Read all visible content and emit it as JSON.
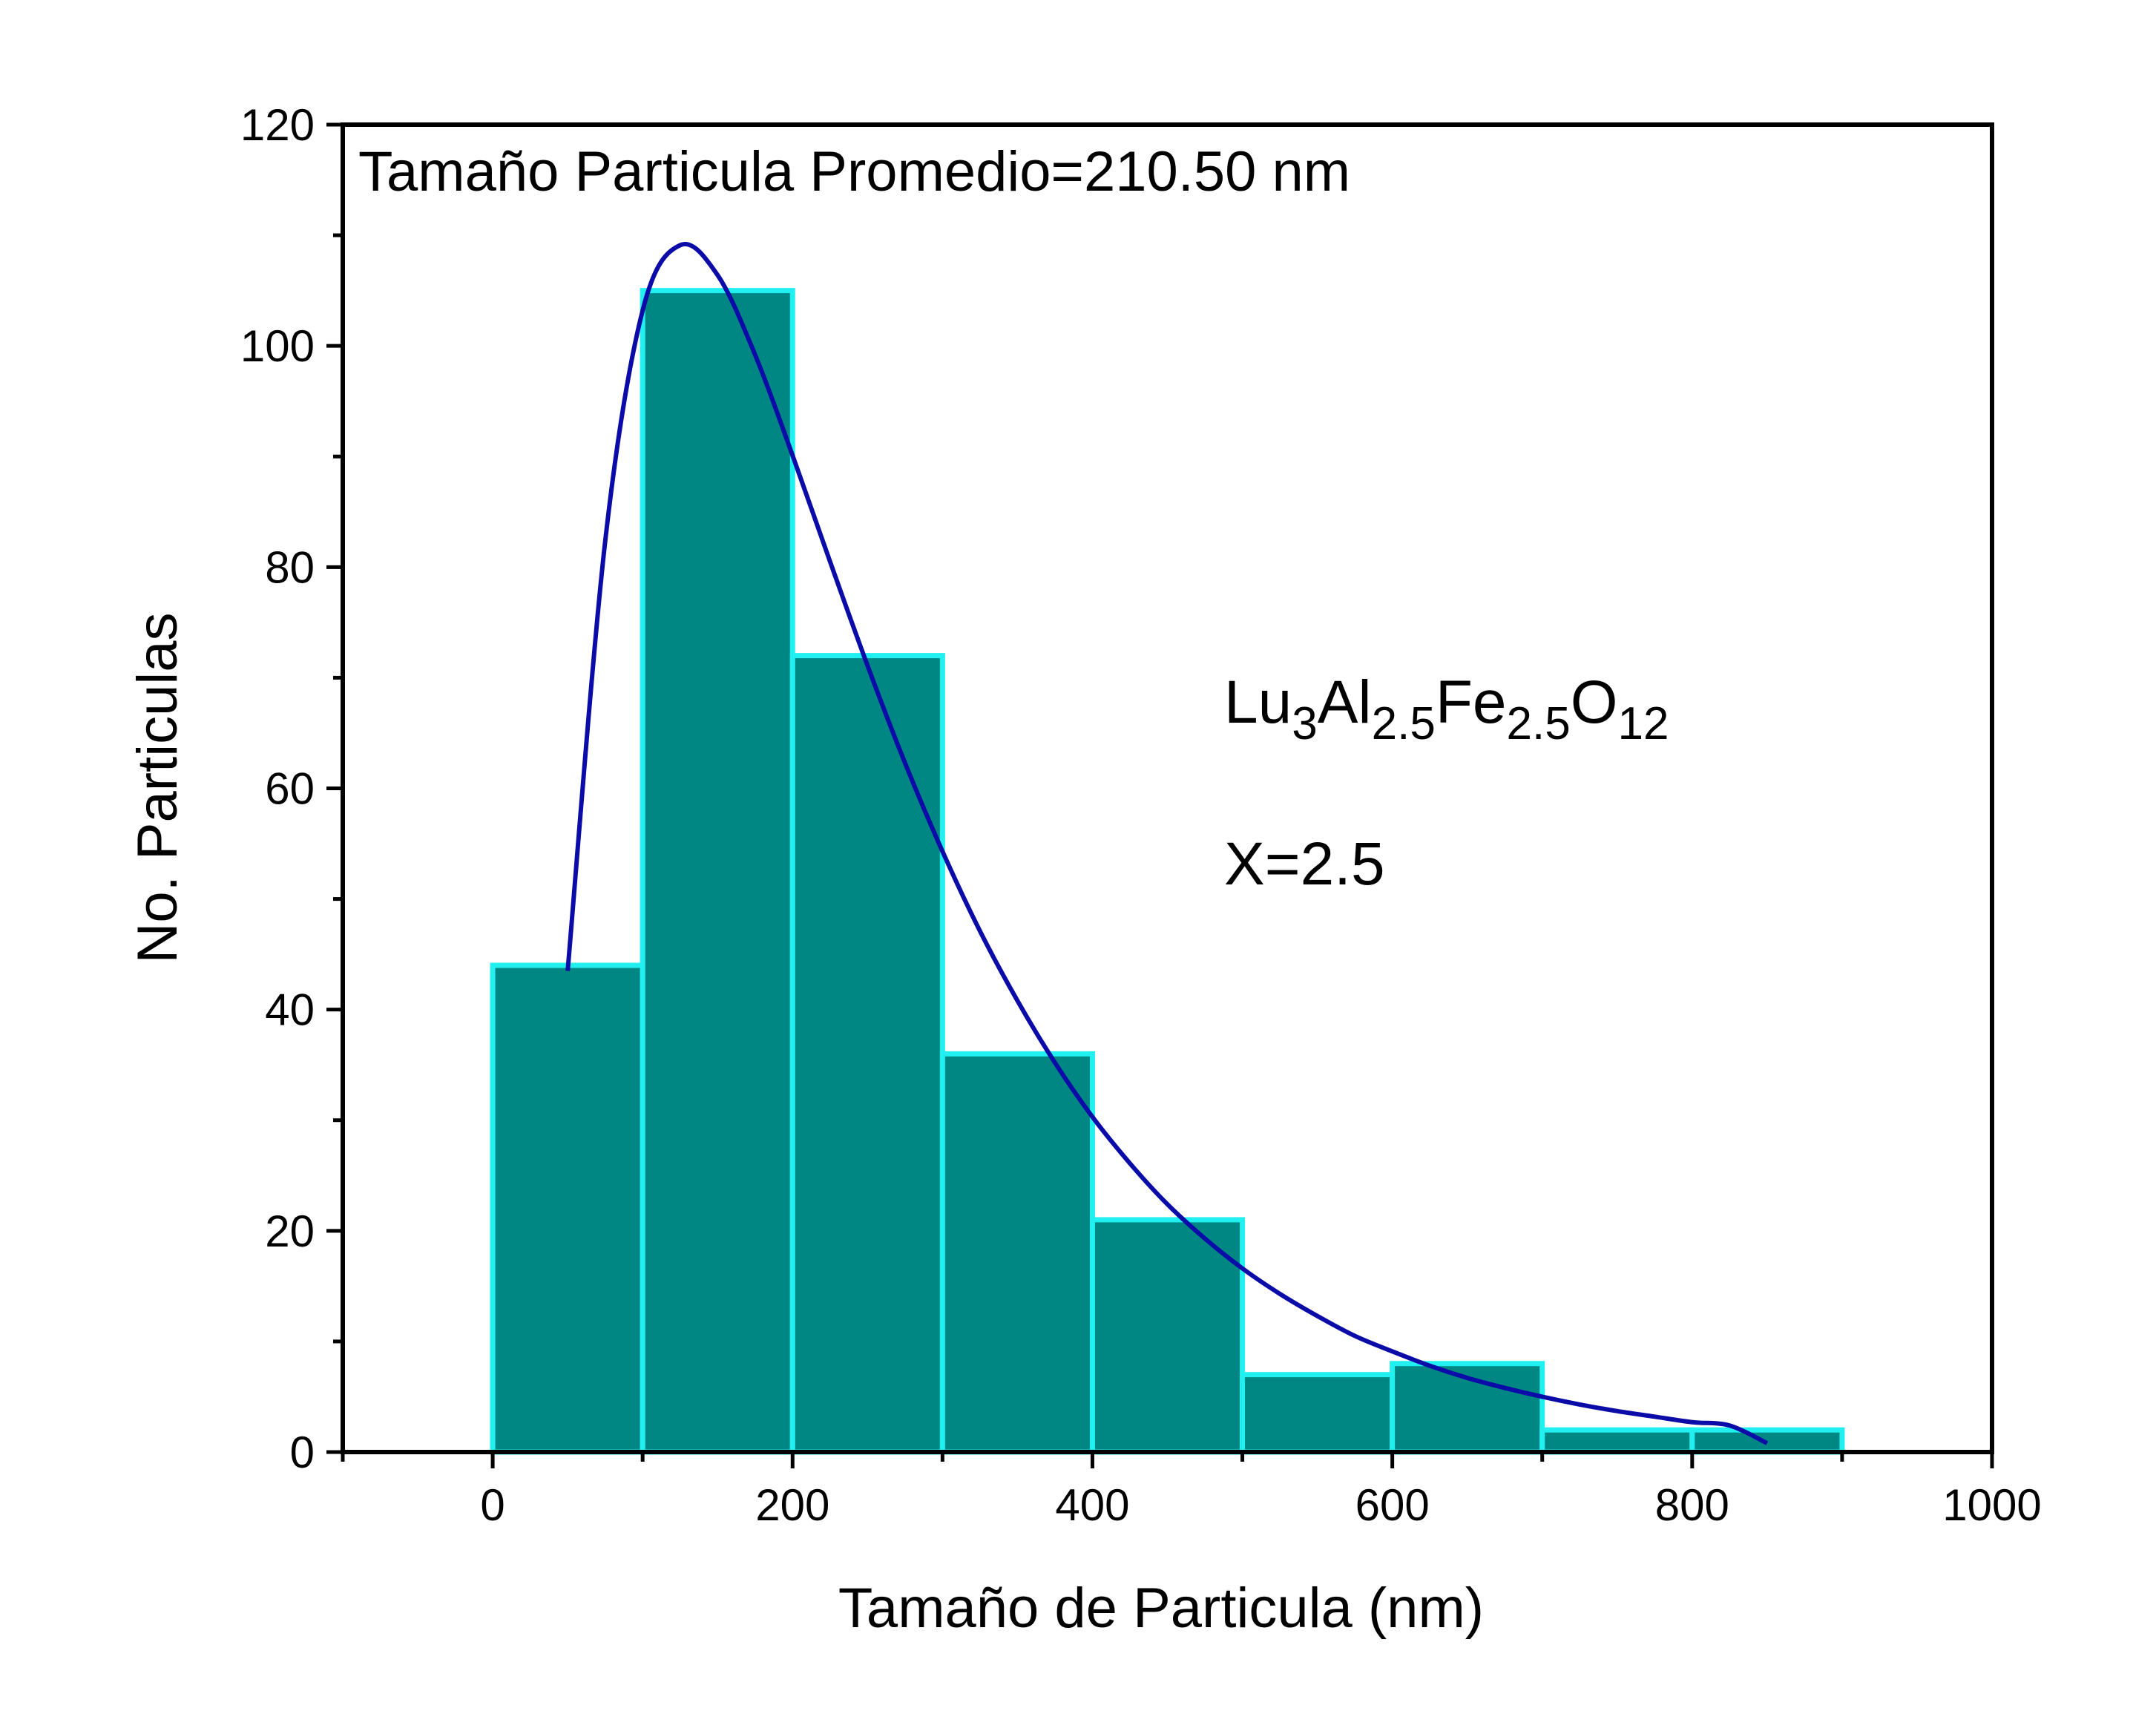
{
  "chart_data": {
    "type": "bar",
    "subtype": "histogram",
    "bin_edges": [
      0,
      100,
      200,
      300,
      400,
      500,
      600,
      700,
      800,
      900
    ],
    "values": [
      44,
      105,
      72,
      36,
      21,
      7,
      8,
      2,
      2
    ],
    "fit_curve": {
      "type": "lognormal",
      "x": [
        50,
        75,
        100,
        125,
        150,
        175,
        200,
        225,
        250,
        275,
        300,
        325,
        350,
        375,
        400,
        425,
        450,
        475,
        500,
        525,
        550,
        575,
        600,
        625,
        650,
        675,
        700,
        725,
        750,
        775,
        800,
        825,
        850
      ],
      "y": [
        43.5,
        82.3,
        103.2,
        109.1,
        106.4,
        99.2,
        90.1,
        80.5,
        71.1,
        62.3,
        54.3,
        47.1,
        40.8,
        35.2,
        30.3,
        26.1,
        22.4,
        19.3,
        16.6,
        14.3,
        12.3,
        10.5,
        9.1,
        7.8,
        6.7,
        5.8,
        5.0,
        4.3,
        3.7,
        3.2,
        2.7,
        2.4,
        0.8
      ]
    },
    "xlabel": "Tamaño de Particula (nm)",
    "ylabel": "No. Particulas",
    "xlim": [
      -100,
      1000
    ],
    "ylim": [
      0,
      120
    ],
    "xticks": [
      0,
      200,
      400,
      600,
      800,
      1000
    ],
    "yticks": [
      0,
      20,
      40,
      60,
      80,
      100,
      120
    ],
    "x_minor_step": 100,
    "y_minor_step": 10,
    "grid": false,
    "legend": "none",
    "colors": {
      "bar_fill": "#008683",
      "bar_edge": "#22F0F0",
      "curve": "#0B0BA8",
      "axes": "#000000"
    }
  },
  "annotations": {
    "mean_label": "Tamaño Particula Promedio=210.50 nm",
    "formula": [
      {
        "text": "Lu",
        "sub": false
      },
      {
        "text": "3",
        "sub": true
      },
      {
        "text": "Al",
        "sub": false
      },
      {
        "text": "2.5",
        "sub": true
      },
      {
        "text": "Fe",
        "sub": false
      },
      {
        "text": "2.5",
        "sub": true
      },
      {
        "text": "O",
        "sub": false
      },
      {
        "text": "12",
        "sub": true
      }
    ],
    "x_value": "X=2.5"
  }
}
